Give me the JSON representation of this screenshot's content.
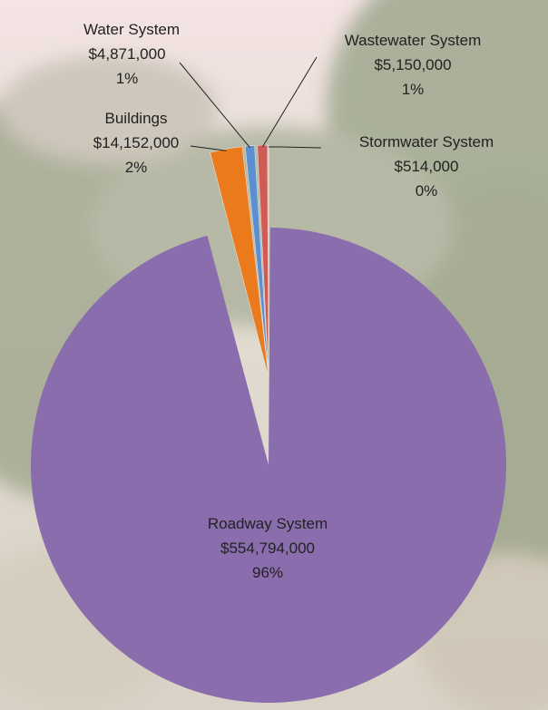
{
  "chart_data": {
    "type": "pie",
    "title": "",
    "slices": [
      {
        "label": "Stormwater System",
        "value_text": "$514,000",
        "pct_text": "0%",
        "value": 514000,
        "color": "#E8C9A0"
      },
      {
        "label": "Roadway System",
        "value_text": "$554,794,000",
        "pct_text": "96%",
        "value": 554794000,
        "color": "#8A6DAD"
      },
      {
        "label": "Buildings",
        "value_text": "$14,152,000",
        "pct_text": "2%",
        "value": 14152000,
        "color": "#EA7A1C"
      },
      {
        "label": "Water System",
        "value_text": "$4,871,000",
        "pct_text": "1%",
        "value": 4871000,
        "color": "#5B8FD0"
      },
      {
        "label": "Wastewater System",
        "value_text": "$5,150,000",
        "pct_text": "1%",
        "value": 5150000,
        "color": "#D05A55"
      }
    ]
  },
  "background": {
    "sky_color": "#F1E3E2",
    "foliage_color": "#A7AD95",
    "ground_color": "#D6CDBE",
    "gap_color": "#E4E2DC"
  }
}
